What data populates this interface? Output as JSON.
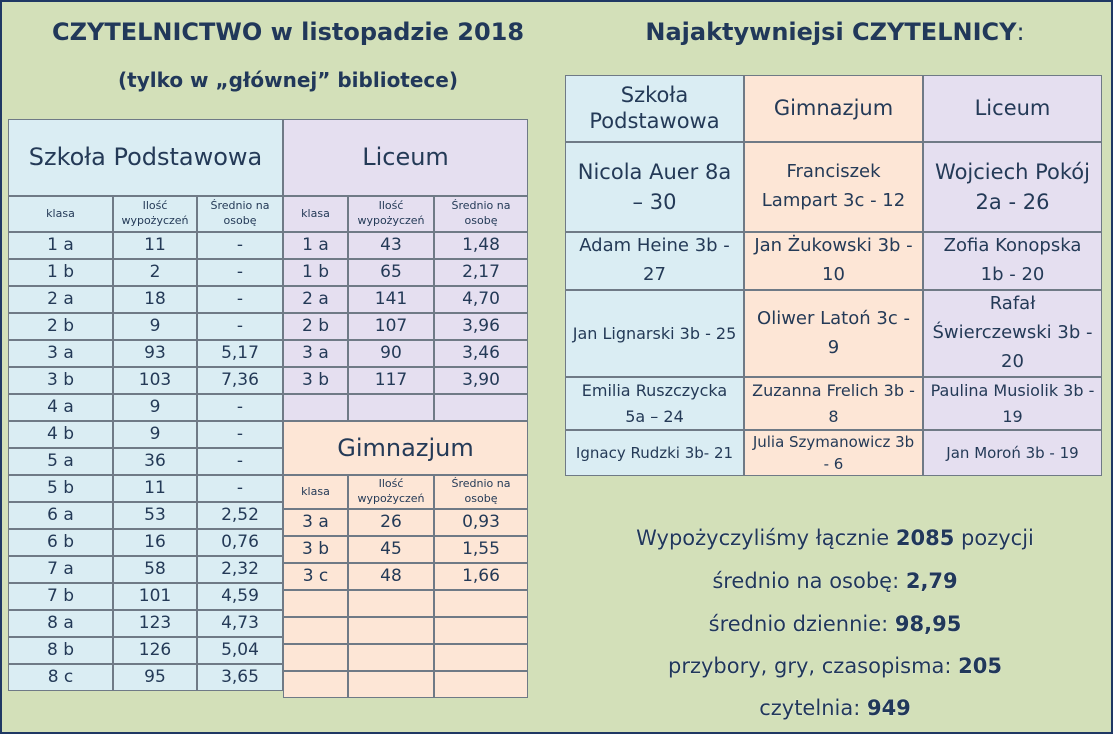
{
  "main_title": "CZYTELNICTWO w listopadzie 2018",
  "sub_title": "(tylko w „głównej” bibliotece)",
  "right_title": "Najaktywniejsi CZYTELNICY",
  "right_title_colon": ":",
  "colors": {
    "blue": "#daedf3",
    "peach": "#fde6d6",
    "lavender": "#e5dff0",
    "text": "#243a57"
  },
  "col_headers": {
    "klasa": "klasa",
    "ilosc": "Ilość wypożyczeń",
    "srednio": "Średnio na osobę"
  },
  "sp": {
    "title": "Szkoła Podstawowa",
    "rows": [
      [
        "1 a",
        "11",
        "-"
      ],
      [
        "1 b",
        "2",
        "-"
      ],
      [
        "2 a",
        "18",
        "-"
      ],
      [
        "2 b",
        "9",
        "-"
      ],
      [
        "3 a",
        "93",
        "5,17"
      ],
      [
        "3 b",
        "103",
        "7,36"
      ],
      [
        "4 a",
        "9",
        "-"
      ],
      [
        "4 b",
        "9",
        "-"
      ],
      [
        "5 a",
        "36",
        "-"
      ],
      [
        "5 b",
        "11",
        "-"
      ],
      [
        "6 a",
        "53",
        "2,52"
      ],
      [
        "6 b",
        "16",
        "0,76"
      ],
      [
        "7 a",
        "58",
        "2,32"
      ],
      [
        "7 b",
        "101",
        "4,59"
      ],
      [
        "8 a",
        "123",
        "4,73"
      ],
      [
        "8 b",
        "126",
        "5,04"
      ],
      [
        "8 c",
        "95",
        "3,65"
      ]
    ]
  },
  "liceum": {
    "title": "Liceum",
    "rows": [
      [
        "1 a",
        "43",
        "1,48"
      ],
      [
        "1 b",
        "65",
        "2,17"
      ],
      [
        "2 a",
        "141",
        "4,70"
      ],
      [
        "2 b",
        "107",
        "3,96"
      ],
      [
        "3 a",
        "90",
        "3,46"
      ],
      [
        "3 b",
        "117",
        "3,90"
      ]
    ]
  },
  "gimnazjum": {
    "title": "Gimnazjum",
    "rows": [
      [
        "3 a",
        "26",
        "0,93"
      ],
      [
        "3 b",
        "45",
        "1,55"
      ],
      [
        "3 c",
        "48",
        "1,66"
      ]
    ]
  },
  "readers": {
    "headers": [
      "Szkoła Podstawowa",
      "Gimnazjum",
      "Liceum"
    ],
    "rows": [
      [
        "Nicola Auer 8a – 30",
        "Franciszek Lampart 3c - 12",
        "Wojciech Pokój 2a - 26"
      ],
      [
        "Adam Heine 3b - 27",
        "Jan Żukowski 3b - 10",
        "Zofia Konopska 1b - 20"
      ],
      [
        "Jan Lignarski 3b - 25",
        "Oliwer Latoń 3c - 9",
        "Rafał Świerczewski 3b - 20"
      ],
      [
        "Emilia Ruszczycka 5a – 24",
        "Zuzanna Frelich 3b - 8",
        "Paulina Musiolik 3b - 19"
      ],
      [
        "Ignacy Rudzki 3b- 21",
        "Julia Szymanowicz 3b - 6",
        "Jan Moroń 3b - 19"
      ]
    ]
  },
  "summary": {
    "line1_pre": "Wypożyczyliśmy łącznie ",
    "line1_val": "2085",
    "line1_post": " pozycji",
    "line2_pre": "średnio na osobę: ",
    "line2_val": "2,79",
    "line3_pre": "średnio dziennie: ",
    "line3_val": "98,95",
    "line4_pre": "przybory, gry, czasopisma: ",
    "line4_val": "205",
    "line5_pre": "czytelnia: ",
    "line5_val": "949"
  }
}
